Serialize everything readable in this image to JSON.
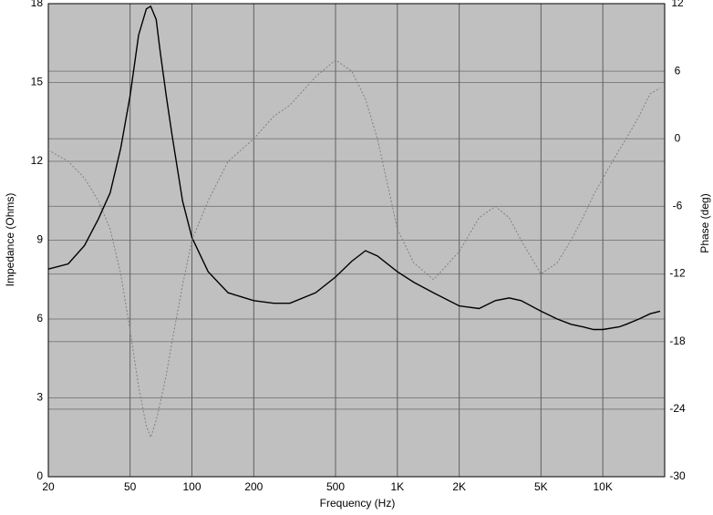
{
  "chart_data": {
    "type": "line",
    "xlabel": "Frequency (Hz)",
    "ylabel": "Impedance (Ohms)",
    "y2label": "Phase (deg)",
    "x": [
      20,
      25,
      30,
      35,
      40,
      45,
      50,
      55,
      60,
      63,
      67,
      70,
      75,
      80,
      90,
      100,
      120,
      150,
      200,
      250,
      300,
      400,
      500,
      600,
      700,
      800,
      1000,
      1200,
      1500,
      2000,
      2500,
      3000,
      3500,
      4000,
      5000,
      6000,
      7000,
      8000,
      9000,
      10000,
      12000,
      13000,
      15000,
      17000,
      19000
    ],
    "series": [
      {
        "color": "#000000",
        "values": [
          7.9,
          8.1,
          8.8,
          9.8,
          10.8,
          12.5,
          14.5,
          16.8,
          17.8,
          17.9,
          17.4,
          16.2,
          14.5,
          13.0,
          10.5,
          9.1,
          7.8,
          7.0,
          6.7,
          6.6,
          6.6,
          7.0,
          7.6,
          8.2,
          8.6,
          8.4,
          7.8,
          7.4,
          7.0,
          6.5,
          6.4,
          6.7,
          6.8,
          6.7,
          6.3,
          6.0,
          5.8,
          5.7,
          5.6,
          5.6,
          5.7,
          5.8,
          6.0,
          6.2,
          6.3
        ]
      },
      {
        "color": "#808080",
        "dashed": true,
        "axis": "y2",
        "values": [
          -1,
          -2,
          -3.5,
          -5.5,
          -8,
          -12,
          -17,
          -22,
          -25.5,
          -26.5,
          -25,
          -23.5,
          -21,
          -18,
          -13,
          -9,
          -5.5,
          -2,
          0,
          2,
          3,
          5.5,
          7,
          6,
          3.5,
          0,
          -8,
          -11,
          -12.5,
          -10,
          -7,
          -6,
          -7,
          -9,
          -12,
          -11,
          -9,
          -7,
          -5,
          -3.5,
          -1,
          0,
          2,
          4,
          4.5
        ]
      }
    ],
    "xscale": "log",
    "xlim": [
      20,
      20000
    ],
    "xticks": [
      20,
      50,
      100,
      200,
      500,
      {
        "value": 1000,
        "label": "1K"
      },
      {
        "value": 2000,
        "label": "2K"
      },
      {
        "value": 5000,
        "label": "5K"
      },
      {
        "value": 10000,
        "label": "10K"
      }
    ],
    "ylim": [
      0,
      18
    ],
    "yticks": [
      0,
      3,
      6,
      9,
      12,
      15,
      18
    ],
    "y2lim": [
      -30,
      12
    ],
    "y2ticks": [
      -30,
      -24,
      -18,
      -12,
      -6,
      0,
      6,
      12
    ],
    "grid": true
  }
}
